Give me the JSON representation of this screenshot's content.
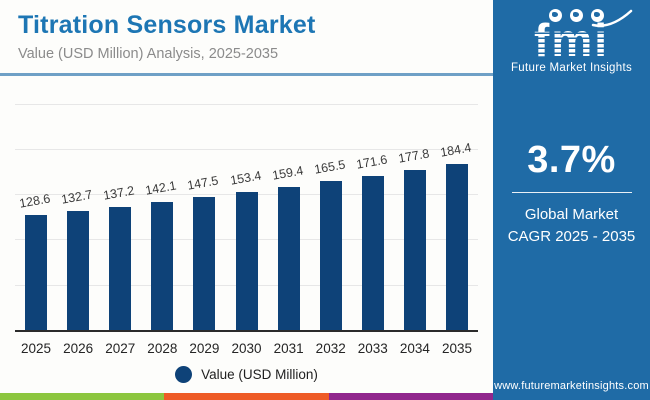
{
  "header": {
    "title": "Titration Sensors Market",
    "subtitle": "Value (USD Million) Analysis, 2025-2035"
  },
  "chart_data": {
    "type": "bar",
    "title": "Titration Sensors Market",
    "xlabel": "",
    "ylabel": "Value (USD Million)",
    "categories": [
      "2025",
      "2026",
      "2027",
      "2028",
      "2029",
      "2030",
      "2031",
      "2032",
      "2033",
      "2034",
      "2035"
    ],
    "values": [
      128.6,
      132.7,
      137.2,
      142.1,
      147.5,
      153.4,
      159.4,
      165.5,
      171.6,
      177.8,
      184.4
    ],
    "ylim": [
      0,
      255
    ],
    "gridline_values": [
      50,
      100,
      150,
      200,
      250
    ],
    "grid": "horizontal only, no y-axis tick labels",
    "bar_color": "#0e4278",
    "legend_label": "Value (USD Million)",
    "legend_position": "bottom"
  },
  "legend": {
    "label": "Value (USD Million)"
  },
  "sidebar": {
    "logo_word": "fmi",
    "logo_caption": "Future Market Insights",
    "logo_icons": [
      "globe-americas-icon",
      "globe-europe-icon",
      "globe-asia-icon"
    ],
    "cagr_value": "3.7%",
    "cagr_line1": "Global Market",
    "cagr_line2": "CAGR 2025 - 2035",
    "website": "www.futuremarketinsights.com",
    "bg_color": "#1f6ba6"
  },
  "footer_stripe": {
    "colors": [
      "#8cc63e",
      "#ee5b26",
      "#91278d"
    ]
  },
  "colors": {
    "title_blue": "#1d76b4",
    "subtitle_gray": "#8b8b8b",
    "header_divider": "#6fa0c6",
    "gridline": "#e7e7e7",
    "axis": "#2b2b2b",
    "bar_navy": "#0e4278",
    "panel_blue": "#1f6ba6",
    "background": "#fdfdfb"
  }
}
